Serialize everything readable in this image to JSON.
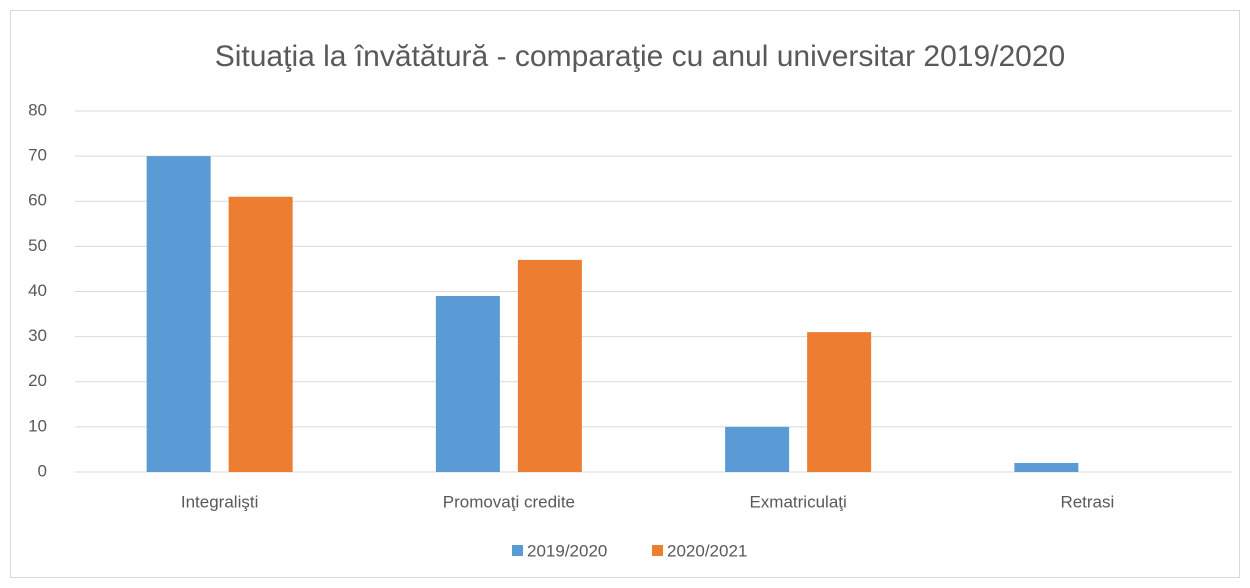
{
  "chart_data": {
    "type": "bar",
    "title": "Situaţia la învătătură - comparaţie cu anul universitar 2019/2020",
    "categories": [
      "Integralişti",
      "Promovaţi credite",
      "Exmatriculaţi",
      "Retrasi"
    ],
    "series": [
      {
        "name": "2019/2020",
        "color": "#5b9bd5",
        "values": [
          70,
          39,
          10,
          2
        ]
      },
      {
        "name": "2020/2021",
        "color": "#ed7d31",
        "values": [
          61,
          47,
          31,
          0
        ]
      }
    ],
    "ylim": [
      0,
      80
    ],
    "yticks": [
      0,
      10,
      20,
      30,
      40,
      50,
      60,
      70,
      80
    ],
    "grid": true,
    "legend": "bottom"
  }
}
